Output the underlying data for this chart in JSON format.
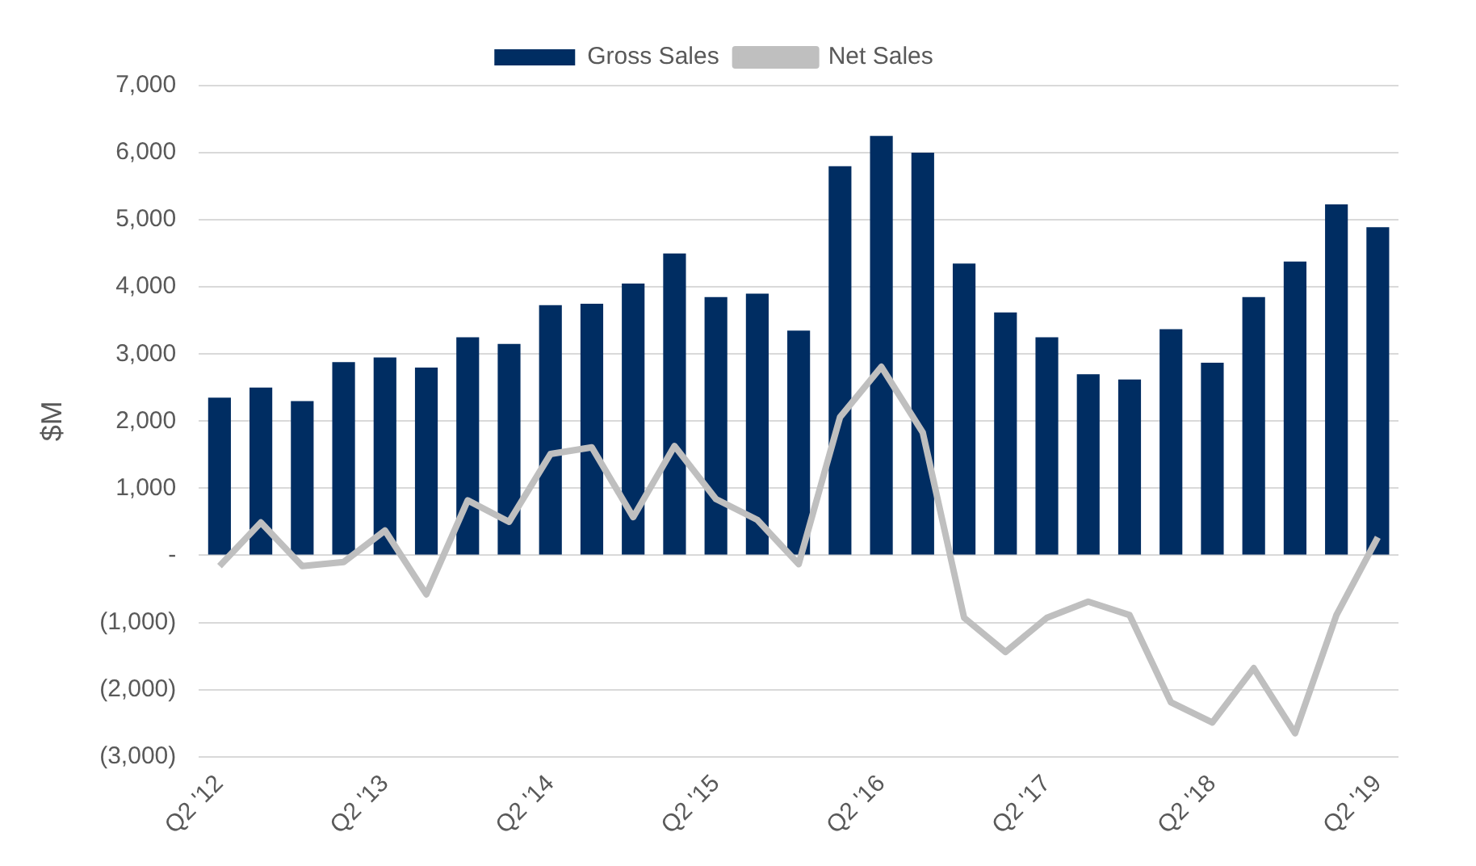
{
  "chart_data": {
    "type": "bar",
    "ylabel": "$M",
    "categories": [
      "Q2 '12",
      null,
      null,
      null,
      "Q2 '13",
      null,
      null,
      null,
      "Q2 '14",
      null,
      null,
      null,
      "Q2 '15",
      null,
      null,
      null,
      "Q2 '16",
      null,
      null,
      null,
      "Q2 '17",
      null,
      null,
      null,
      "Q2 '18",
      null,
      null,
      null,
      "Q2 '19"
    ],
    "series": [
      {
        "name": "Gross Sales",
        "color": "#002d62",
        "values": [
          2350,
          2500,
          2300,
          2880,
          2950,
          2800,
          3250,
          3150,
          3730,
          3750,
          4050,
          4500,
          3850,
          3900,
          3350,
          5800,
          6250,
          6000,
          4350,
          3620,
          3250,
          2700,
          2620,
          3370,
          2870,
          3850,
          4380,
          5230,
          4890
        ]
      },
      {
        "name": "Net Sales",
        "type": "line",
        "color": "#bfbfbf",
        "values": [
          -160,
          490,
          -160,
          -100,
          370,
          -580,
          820,
          500,
          1510,
          1610,
          570,
          1630,
          840,
          530,
          -130,
          2060,
          2810,
          1830,
          -930,
          -1440,
          -930,
          -690,
          -890,
          -2190,
          -2490,
          -1680,
          -2650,
          -890,
          270
        ]
      }
    ],
    "ylim": [
      -3000,
      7000
    ],
    "yticks": [
      {
        "value": -3000,
        "label": "(3,000)"
      },
      {
        "value": -2000,
        "label": "(2,000)"
      },
      {
        "value": -1000,
        "label": "(1,000)"
      },
      {
        "value": 0,
        "label": "-"
      },
      {
        "value": 1000,
        "label": "1,000"
      },
      {
        "value": 2000,
        "label": "2,000"
      },
      {
        "value": 3000,
        "label": "3,000"
      },
      {
        "value": 4000,
        "label": "4,000"
      },
      {
        "value": 5000,
        "label": "5,000"
      },
      {
        "value": 6000,
        "label": "6,000"
      },
      {
        "value": 7000,
        "label": "7,000"
      }
    ],
    "grid": "y",
    "legend": "top",
    "marker": "none",
    "line_style": "solid"
  }
}
